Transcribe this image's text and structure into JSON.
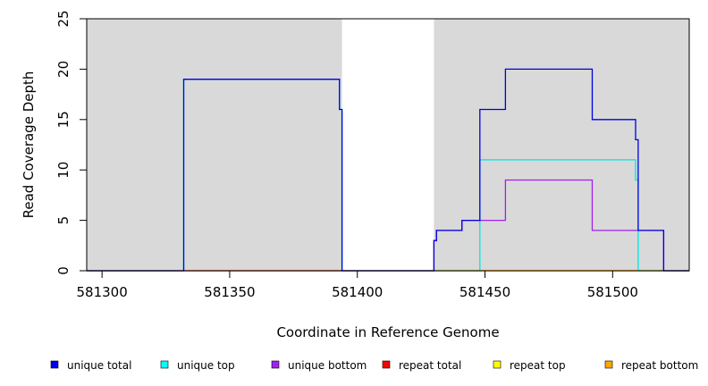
{
  "chart_data": {
    "type": "line",
    "title": "",
    "xlabel": "Coordinate in Reference Genome",
    "ylabel": "Read Coverage Depth",
    "xlim": [
      581294,
      581530
    ],
    "ylim": [
      0,
      25
    ],
    "xticks": [
      581300,
      581350,
      581400,
      581450,
      581500
    ],
    "yticks": [
      0,
      5,
      10,
      15,
      20,
      25
    ],
    "grid": false,
    "shaded_regions": [
      {
        "x0": 581294,
        "x1": 581394,
        "color": "#d9d9d9"
      },
      {
        "x0": 581430,
        "x1": 581530,
        "color": "#d9d9d9"
      }
    ],
    "series": [
      {
        "name": "repeat total",
        "color": "#ff0000",
        "x": [
          581294,
          581530
        ],
        "y": [
          0,
          0
        ]
      },
      {
        "name": "repeat top",
        "color": "#ffff00",
        "x": [
          581294,
          581530
        ],
        "y": [
          0,
          0
        ]
      },
      {
        "name": "repeat bottom",
        "color": "#ffa500",
        "x": [
          581294,
          581530
        ],
        "y": [
          0,
          0
        ]
      },
      {
        "name": "unique top",
        "color": "#00e5e5",
        "x": [
          581294,
          581332,
          581332,
          581393,
          581393,
          581394,
          581394,
          581448,
          581448,
          581509,
          581509,
          581510,
          581510,
          581530
        ],
        "y": [
          0,
          0,
          19,
          19,
          16,
          16,
          0,
          0,
          11,
          11,
          9,
          9,
          0,
          0
        ]
      },
      {
        "name": "unique bottom",
        "color": "#a020f0",
        "x": [
          581294,
          581430,
          581430,
          581431,
          581431,
          581441,
          581441,
          581458,
          581458,
          581492,
          581492,
          581520,
          581520,
          581530
        ],
        "y": [
          0,
          0,
          3,
          3,
          4,
          4,
          5,
          5,
          9,
          9,
          4,
          4,
          0,
          0
        ]
      },
      {
        "name": "unique total",
        "color": "#0000e0",
        "x": [
          581294,
          581332,
          581332,
          581393,
          581393,
          581394,
          581394,
          581430,
          581430,
          581431,
          581431,
          581441,
          581441,
          581448,
          581448,
          581458,
          581458,
          581492,
          581492,
          581509,
          581509,
          581510,
          581510,
          581520,
          581520,
          581530
        ],
        "y": [
          0,
          0,
          19,
          19,
          16,
          16,
          0,
          0,
          3,
          3,
          4,
          4,
          5,
          5,
          16,
          16,
          20,
          20,
          15,
          15,
          13,
          13,
          4,
          4,
          0,
          0
        ]
      }
    ],
    "legend": {
      "placement": "bottom",
      "entries": [
        {
          "name": "unique total",
          "color": "#0000ff"
        },
        {
          "name": "unique top",
          "color": "#00ffff"
        },
        {
          "name": "unique bottom",
          "color": "#a020f0"
        },
        {
          "name": "repeat total",
          "color": "#ff0000"
        },
        {
          "name": "repeat top",
          "color": "#ffff00"
        },
        {
          "name": "repeat bottom",
          "color": "#ffa500"
        }
      ]
    }
  }
}
